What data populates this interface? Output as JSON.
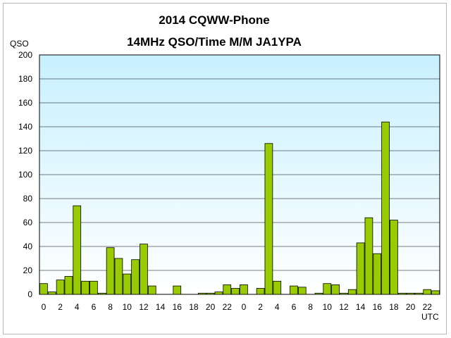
{
  "chart_data": {
    "type": "bar",
    "title": "2014  CQWW-Phone",
    "subtitle": "14MHz QSO/Time  M/M JA1YPA",
    "ylabel": "QSO",
    "xlabel": "UTC",
    "ylim": [
      0,
      200
    ],
    "yticks": [
      0,
      20,
      40,
      60,
      80,
      100,
      120,
      140,
      160,
      180,
      200
    ],
    "grid": true,
    "categories": [
      "0",
      "1",
      "2",
      "3",
      "4",
      "5",
      "6",
      "7",
      "8",
      "9",
      "10",
      "11",
      "12",
      "13",
      "14",
      "15",
      "16",
      "17",
      "18",
      "19",
      "20",
      "21",
      "22",
      "23",
      "0",
      "1",
      "2",
      "3",
      "4",
      "5",
      "6",
      "7",
      "8",
      "9",
      "10",
      "11",
      "12",
      "13",
      "14",
      "15",
      "16",
      "17",
      "18",
      "19",
      "20",
      "21",
      "22",
      "23"
    ],
    "tick_labels": [
      "0",
      "",
      "2",
      "",
      "4",
      "",
      "6",
      "",
      "8",
      "",
      "10",
      "",
      "12",
      "",
      "14",
      "",
      "16",
      "",
      "18",
      "",
      "20",
      "",
      "22",
      "",
      "0",
      "",
      "2",
      "",
      "4",
      "",
      "6",
      "",
      "8",
      "",
      "10",
      "",
      "12",
      "",
      "14",
      "",
      "16",
      "",
      "18",
      "",
      "20",
      "",
      "22",
      ""
    ],
    "values": [
      9,
      2,
      12,
      15,
      74,
      11,
      11,
      1,
      39,
      30,
      17,
      29,
      42,
      7,
      0,
      0,
      7,
      0,
      0,
      1,
      1,
      2,
      8,
      5,
      8,
      0,
      5,
      126,
      11,
      0,
      7,
      6,
      0,
      1,
      9,
      8,
      1,
      4,
      43,
      64,
      34,
      144,
      62,
      1,
      1,
      1,
      4,
      3
    ],
    "colors": {
      "bar_fill": "#99cc00",
      "bar_stroke": "#000000",
      "plot_top": "#c8f0ff",
      "plot_bottom": "#ffffff",
      "grid": "#000000"
    }
  }
}
